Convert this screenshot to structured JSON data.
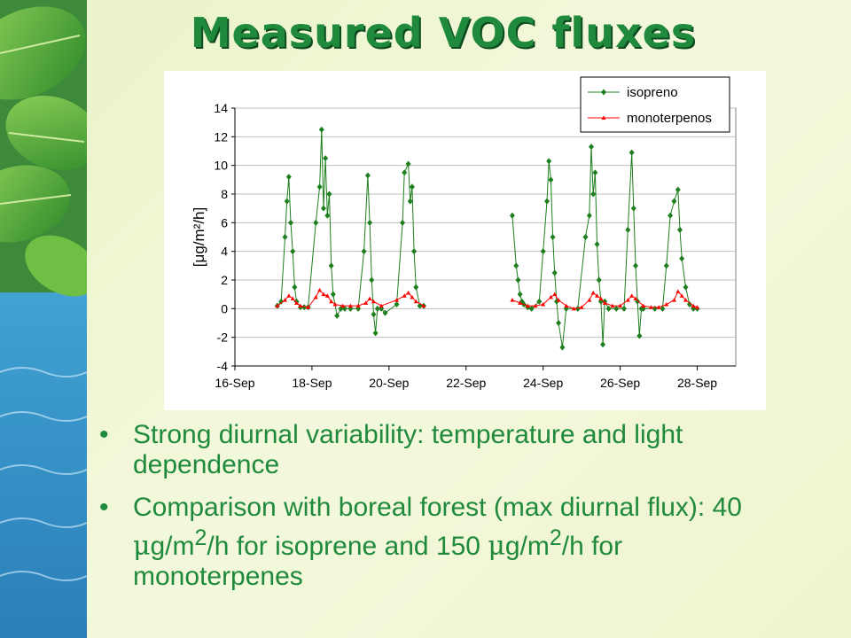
{
  "title": "Measured VOC fluxes",
  "colors": {
    "isoprene": "#1e7f1e",
    "monoterpenes": "#ff0000",
    "title_green": "#1f8a3c"
  },
  "chart_data": {
    "type": "line",
    "title": "",
    "xlabel": "",
    "ylabel": "[μg/m²/h]",
    "x_tick_labels": [
      "16-Sep",
      "18-Sep",
      "20-Sep",
      "22-Sep",
      "24-Sep",
      "26-Sep",
      "28-Sep"
    ],
    "x_ticks": [
      16,
      18,
      20,
      22,
      24,
      26,
      28
    ],
    "xlim": [
      16,
      29
    ],
    "y_ticks": [
      -4,
      -2,
      0,
      2,
      4,
      6,
      8,
      10,
      12,
      14
    ],
    "ylim": [
      -4,
      14
    ],
    "grid": "horizontal",
    "legend": "top-right",
    "series": [
      {
        "name": "isopreno",
        "color": "#1e7f1e",
        "marker": "diamond",
        "x": [
          17.1,
          17.2,
          17.3,
          17.35,
          17.4,
          17.45,
          17.5,
          17.55,
          17.6,
          17.7,
          17.8,
          17.9,
          18.1,
          18.2,
          18.25,
          18.3,
          18.35,
          18.4,
          18.45,
          18.5,
          18.55,
          18.65,
          18.75,
          18.85,
          19.0,
          19.2,
          19.35,
          19.45,
          19.5,
          19.55,
          19.6,
          19.65,
          19.7,
          19.8,
          19.9,
          20.2,
          20.35,
          20.4,
          20.5,
          20.55,
          20.6,
          20.65,
          20.7,
          20.8,
          20.9,
          23.2,
          23.3,
          23.35,
          23.4,
          23.45,
          23.5,
          23.6,
          23.7,
          23.9,
          24.0,
          24.1,
          24.15,
          24.2,
          24.25,
          24.3,
          24.35,
          24.4,
          24.5,
          24.6,
          24.9,
          25.1,
          25.2,
          25.25,
          25.3,
          25.35,
          25.4,
          25.45,
          25.5,
          25.55,
          25.6,
          25.7,
          25.9,
          26.1,
          26.2,
          26.3,
          26.35,
          26.4,
          26.45,
          26.5,
          26.55,
          26.6,
          26.9,
          27.1,
          27.2,
          27.3,
          27.4,
          27.5,
          27.55,
          27.6,
          27.7,
          27.8,
          27.9,
          28.0
        ],
        "y": [
          0.2,
          0.5,
          5.0,
          7.5,
          9.2,
          6.0,
          4.0,
          1.5,
          0.5,
          0.1,
          0.1,
          0.1,
          6.0,
          8.5,
          12.5,
          7.0,
          10.5,
          6.5,
          8.0,
          3.0,
          1.0,
          -0.5,
          0.0,
          0.0,
          0.0,
          0.0,
          4.0,
          9.3,
          6.0,
          2.0,
          -0.4,
          -1.7,
          0.0,
          0.0,
          -0.3,
          0.3,
          6.0,
          9.5,
          10.1,
          7.5,
          8.5,
          4.0,
          1.5,
          0.2,
          0.2,
          6.5,
          3.0,
          2.0,
          1.0,
          0.5,
          0.3,
          0.1,
          0.0,
          0.5,
          4.0,
          7.5,
          10.3,
          9.0,
          5.0,
          2.5,
          0.5,
          -1.0,
          -2.7,
          0.0,
          0.0,
          5.0,
          6.5,
          11.3,
          8.0,
          9.5,
          4.5,
          2.0,
          0.5,
          -2.5,
          0.5,
          0.0,
          0.0,
          0.0,
          5.5,
          10.9,
          7.0,
          3.0,
          0.5,
          -1.9,
          0.0,
          0.0,
          0.0,
          0.0,
          3.0,
          6.5,
          7.5,
          8.3,
          5.5,
          3.5,
          1.5,
          0.3,
          0.0,
          0.0
        ]
      },
      {
        "name": "monoterpenos",
        "color": "#ff0000",
        "marker": "triangle",
        "x": [
          17.1,
          17.3,
          17.4,
          17.5,
          17.6,
          17.7,
          17.9,
          18.1,
          18.2,
          18.3,
          18.4,
          18.5,
          18.6,
          18.8,
          19.0,
          19.2,
          19.4,
          19.5,
          19.6,
          19.8,
          20.2,
          20.4,
          20.5,
          20.6,
          20.7,
          20.9,
          23.2,
          23.4,
          23.6,
          23.8,
          24.0,
          24.2,
          24.3,
          24.4,
          24.6,
          24.8,
          25.0,
          25.2,
          25.3,
          25.4,
          25.5,
          25.6,
          25.8,
          26.0,
          26.2,
          26.3,
          26.4,
          26.6,
          26.8,
          27.0,
          27.2,
          27.4,
          27.5,
          27.6,
          27.7,
          27.9,
          28.0
        ],
        "y": [
          0.2,
          0.6,
          0.9,
          0.7,
          0.4,
          0.2,
          0.1,
          0.8,
          1.3,
          1.0,
          0.9,
          0.5,
          0.3,
          0.2,
          0.2,
          0.2,
          0.4,
          0.7,
          0.5,
          0.2,
          0.6,
          0.9,
          1.1,
          0.8,
          0.5,
          0.2,
          0.6,
          0.4,
          0.2,
          0.2,
          0.3,
          0.8,
          1.0,
          0.6,
          0.2,
          0.0,
          0.1,
          0.6,
          1.1,
          0.9,
          0.7,
          0.4,
          0.2,
          0.2,
          0.6,
          0.9,
          0.7,
          0.2,
          0.1,
          0.1,
          0.3,
          0.6,
          1.2,
          0.9,
          0.6,
          0.2,
          0.1
        ]
      }
    ]
  },
  "bullets": [
    {
      "pre": "Strong diurnal variability: temperature and light dependence"
    },
    {
      "pre": "Comparison with boreal forest (max diurnal flux): 40 ",
      "mu1": "μ",
      "mid1": "g/m",
      "sup1": "2",
      "mid2": "/h for isoprene and 150 ",
      "mu2": "μ",
      "mid3": "g/m",
      "sup2": "2",
      "post": "/h for monoterpenes"
    }
  ],
  "bullet_symbol": "•"
}
